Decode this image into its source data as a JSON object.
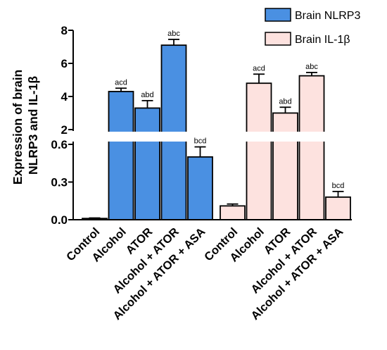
{
  "colors": {
    "nlrp3": "#4a90e2",
    "il1b": "#fde2df",
    "axis": "#000000"
  },
  "chart_data": {
    "type": "bar",
    "ylabel": [
      "Expression of brain",
      "NLRP3 and IL-1β"
    ],
    "y_axis": {
      "scale": "broken",
      "lower_range": [
        0,
        0.6
      ],
      "upper_range": [
        2,
        8
      ],
      "lower_ticks": [
        "0.0",
        "0.3",
        "0.6"
      ],
      "upper_ticks": [
        "2",
        "4",
        "6",
        "8"
      ],
      "break_between": [
        0.6,
        2
      ]
    },
    "categories": [
      "Control",
      "Alcohol",
      "ATOR",
      "Alcohol + ATOR",
      "Alcohol + ATOR + ASA"
    ],
    "legend_position": "top-right",
    "grid": false,
    "series": [
      {
        "name": "Brain NLRP3",
        "color": "#4a90e2",
        "values": [
          0.01,
          4.3,
          3.3,
          7.1,
          0.5
        ],
        "errors": [
          0.004,
          0.2,
          0.45,
          0.35,
          0.08
        ],
        "labels": [
          "",
          "acd",
          "abd",
          "abc",
          "bcd"
        ]
      },
      {
        "name": "Brain IL-1β",
        "color": "#fde2df",
        "values": [
          0.11,
          4.8,
          3.0,
          5.25,
          0.18
        ],
        "errors": [
          0.015,
          0.55,
          0.35,
          0.2,
          0.045
        ],
        "labels": [
          "",
          "acd",
          "abd",
          "abc",
          "bcd"
        ]
      }
    ]
  }
}
